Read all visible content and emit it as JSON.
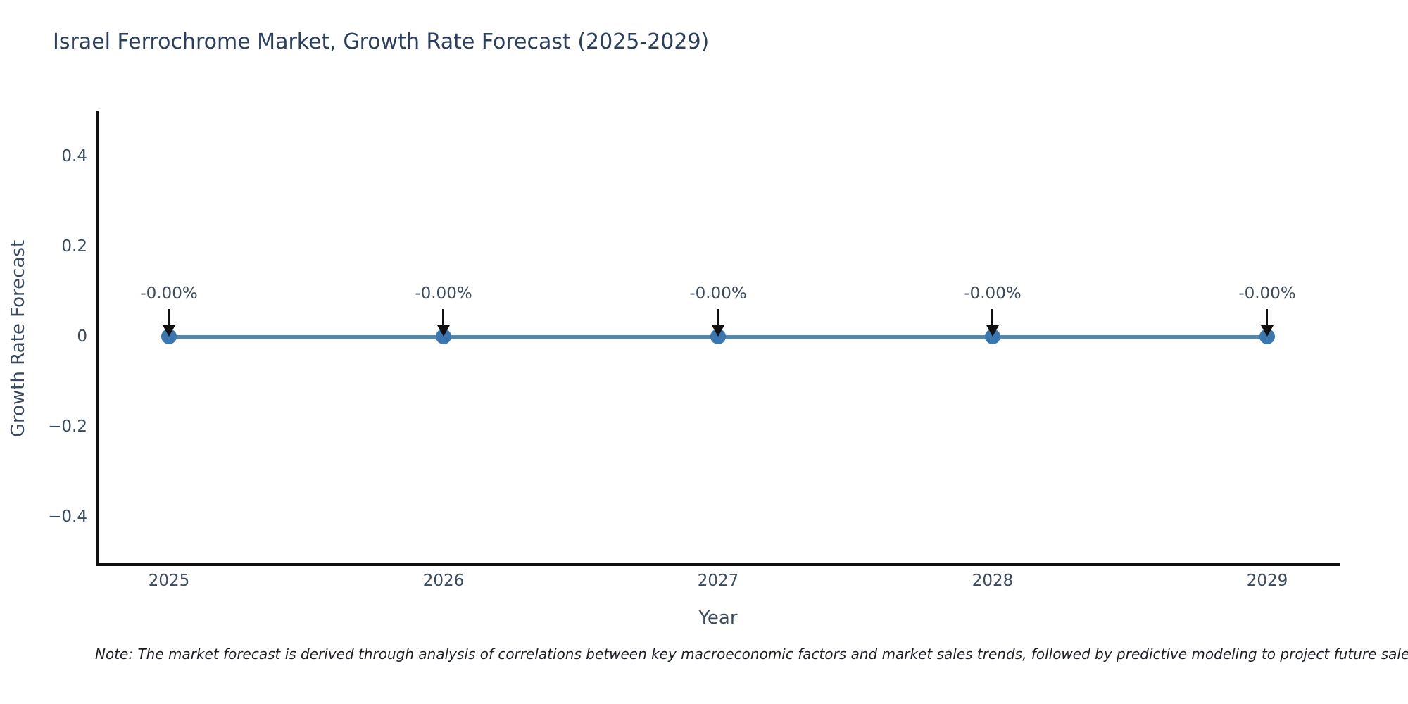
{
  "colors": {
    "background": "#ffffff",
    "title_text": "#2a3f5f",
    "tick_text": "#3a4b61",
    "annotation_text": "#3d4a5c",
    "axis": "#111111",
    "arrow": "#111111",
    "line": "#5188b0",
    "marker": "#3a76b0",
    "note_text": "#1c1f26"
  },
  "note": {
    "text": "Note: The market forecast is derived through analysis of correlations between key macroeconomic factors and market sales trends, followed by predictive modeling to project future sales."
  },
  "chart_data": {
    "type": "line",
    "title": "Israel Ferrochrome Market, Growth Rate Forecast (2025-2029)",
    "xlabel": "Year",
    "ylabel": "Growth Rate Forecast",
    "categories": [
      "2025",
      "2026",
      "2027",
      "2028",
      "2029"
    ],
    "x": [
      2025,
      2026,
      2027,
      2028,
      2029
    ],
    "series": [
      {
        "name": "Growth Rate Forecast",
        "values": [
          0,
          0,
          0,
          0,
          0
        ]
      }
    ],
    "point_labels": [
      "-0.00%",
      "-0.00%",
      "-0.00%",
      "-0.00%",
      "-0.00%"
    ],
    "ytick_labels": [
      "0.4",
      "0.2",
      "0",
      "−0.2",
      "−0.4"
    ],
    "yticks": [
      0.4,
      0.2,
      0,
      -0.2,
      -0.4
    ],
    "ylim": [
      -0.5,
      0.5
    ],
    "xlim": [
      2024.75,
      2029.25
    ],
    "grid": false,
    "legend": "none",
    "marker_style": "circle",
    "annotation_arrow": "down"
  }
}
